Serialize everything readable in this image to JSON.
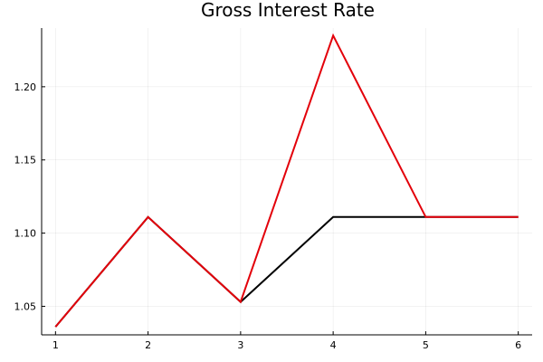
{
  "chart_data": {
    "type": "line",
    "title": "Gross Interest Rate",
    "xlabel": "",
    "ylabel": "",
    "x": [
      1,
      2,
      3,
      4,
      5,
      6
    ],
    "xlim": [
      0.85,
      6.15
    ],
    "ylim": [
      1.0305,
      1.2401
    ],
    "xticks": [
      1,
      2,
      3,
      4,
      5,
      6
    ],
    "yticks": [
      1.05,
      1.1,
      1.15,
      1.2
    ],
    "ytick_labels": [
      "1.05",
      "1.10",
      "1.15",
      "1.20"
    ],
    "grid": true,
    "legend": "none",
    "series": [
      {
        "color": "#000000",
        "values": [
          1.036,
          1.111,
          1.053,
          1.111,
          1.111,
          1.111
        ]
      },
      {
        "color": "#e3000a",
        "values": [
          1.036,
          1.111,
          1.053,
          1.235,
          1.111,
          1.111
        ]
      }
    ]
  }
}
